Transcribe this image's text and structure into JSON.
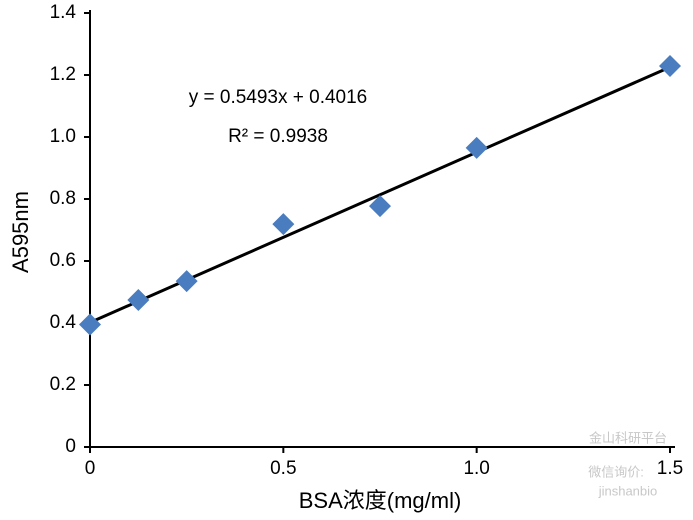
{
  "chart_data": {
    "type": "scatter",
    "x_label": "BSA浓度(mg/ml)",
    "y_label": "A595nm",
    "x": [
      0,
      0.125,
      0.25,
      0.5,
      0.75,
      1.0,
      1.5
    ],
    "series": [
      {
        "color": "#4a7cc0",
        "values": [
          0.395,
          0.474,
          0.535,
          0.719,
          0.777,
          0.965,
          1.229
        ]
      }
    ],
    "trendline": {
      "slope": 0.5493,
      "intercept": 0.4016,
      "color": "#000000",
      "label": "y = 0.5493x + 0.4016",
      "r2_label": "R² = 0.9938"
    },
    "xlim": [
      0,
      1.5
    ],
    "xticks": [
      0,
      0.5,
      {
        "value": 1,
        "label": "1.0"
      },
      1.5
    ],
    "ylim": [
      0,
      1.4
    ],
    "yticks": [
      0,
      0.2,
      0.4,
      0.6,
      0.8,
      {
        "value": 1,
        "label": "1.0"
      },
      1.2,
      1.4
    ],
    "grid": false
  },
  "watermark": {
    "line1": "金山科研平台",
    "line2": "微信询价:",
    "line3": "jinshanbio"
  }
}
